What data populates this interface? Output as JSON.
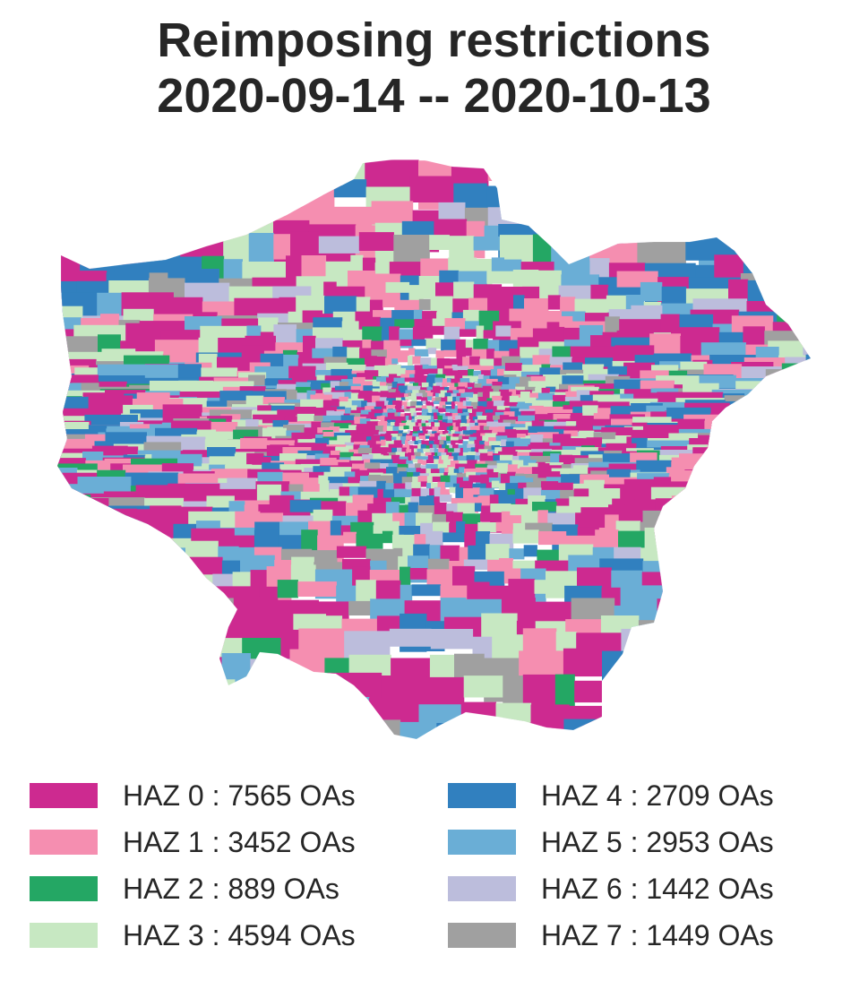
{
  "title": {
    "line1": "Reimposing restrictions",
    "line2": "2020-09-14 -- 2020-10-13"
  },
  "legend": [
    {
      "label": "HAZ 0 : 7565 OAs",
      "color": "#cd2a90",
      "count": 7565
    },
    {
      "label": "HAZ 1 : 3452 OAs",
      "color": "#f58eb0",
      "count": 3452
    },
    {
      "label": "HAZ 2 : 889 OAs",
      "color": "#24a764",
      "count": 889
    },
    {
      "label": "HAZ 3 : 4594 OAs",
      "color": "#c7e8c2",
      "count": 4594
    },
    {
      "label": "HAZ 4 : 2709 OAs",
      "color": "#3180bf",
      "count": 2709
    },
    {
      "label": "HAZ 5 : 2953 OAs",
      "color": "#6aaed6",
      "count": 2953
    },
    {
      "label": "HAZ 6 : 1442 OAs",
      "color": "#bcbddc",
      "count": 1442
    },
    {
      "label": "HAZ 7 : 1449 OAs",
      "color": "#a0a0a0",
      "count": 1449
    }
  ]
}
